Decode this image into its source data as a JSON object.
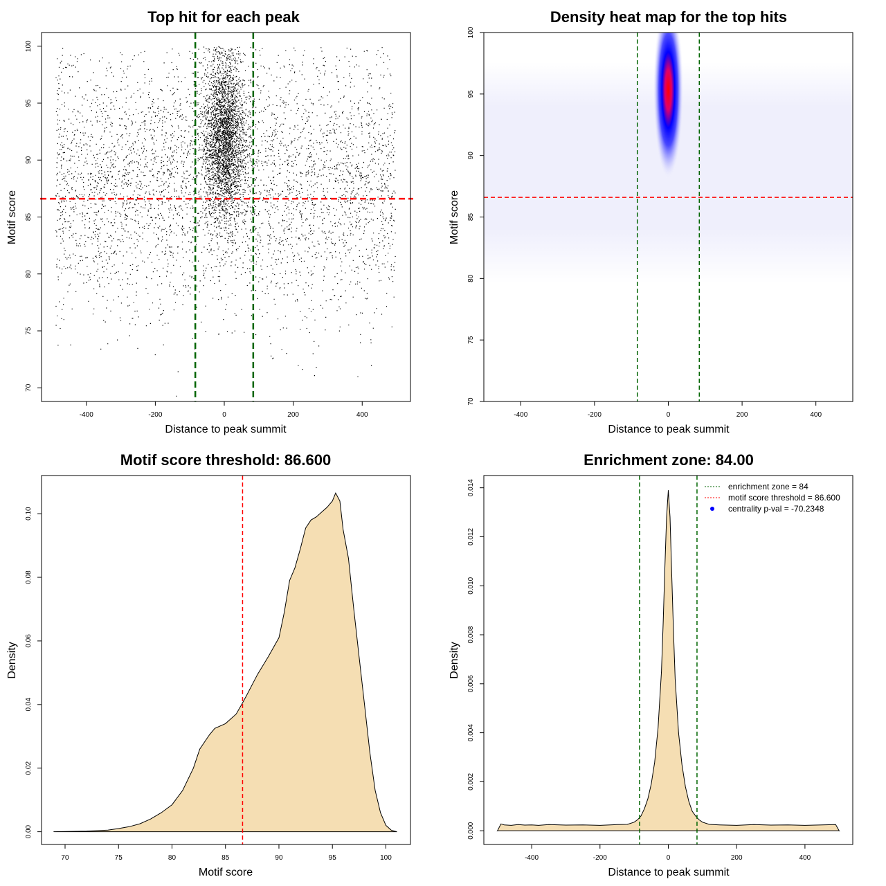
{
  "chart_data": [
    {
      "type": "scatter",
      "title": "Top hit for each peak",
      "xlabel": "Distance to peak summit",
      "ylabel": "Motif score",
      "xlim": [
        -530,
        540
      ],
      "ylim": [
        68.8,
        101.2
      ],
      "xticks": [
        -400,
        -200,
        0,
        200,
        400
      ],
      "yticks": [
        70,
        75,
        80,
        85,
        90,
        95,
        100
      ],
      "vlines": [
        -84,
        84
      ],
      "hline": 86.6,
      "point_distribution": {
        "background": {
          "x_range": [
            -490,
            495
          ],
          "y_center": 88,
          "y_spread": 5.5,
          "count": 9000
        },
        "central": {
          "x_center": 0,
          "x_spread": 30,
          "y_center": 92,
          "y_spread": 3.6,
          "count": 15000
        },
        "score_max": 100
      }
    },
    {
      "type": "heatmap",
      "title": "Density heat map for the top hits",
      "xlabel": "Distance to peak summit",
      "ylabel": "Motif score",
      "xlim": [
        -500,
        500
      ],
      "ylim": [
        70,
        100
      ],
      "xticks": [
        -400,
        -200,
        0,
        200,
        400
      ],
      "yticks": [
        70,
        75,
        80,
        85,
        90,
        95,
        100
      ],
      "vlines": [
        -84,
        84
      ],
      "hline": 86.6,
      "hotspot": {
        "x": 0,
        "y": 95
      },
      "colors": [
        "#ffffff",
        "#0000ff",
        "#ff0000"
      ]
    },
    {
      "type": "area",
      "title": "Motif score threshold: 86.600",
      "xlabel": "Motif score",
      "ylabel": "Density",
      "xlim": [
        67.8,
        102.3
      ],
      "ylim": [
        -0.004,
        0.112
      ],
      "xticks": [
        70,
        75,
        80,
        85,
        90,
        95,
        100
      ],
      "yticks": [
        0.0,
        0.02,
        0.04,
        0.06,
        0.08,
        0.1
      ],
      "ytick_labels": [
        "0.00",
        "0.02",
        "0.04",
        "0.06",
        "0.08",
        "0.10"
      ],
      "vline": 86.6,
      "x": [
        69,
        72,
        74,
        75,
        76,
        77,
        78,
        79,
        80,
        81,
        82,
        82.6,
        83,
        83.5,
        84,
        85,
        86,
        86.6,
        87,
        88,
        89,
        90,
        90.5,
        91,
        91.5,
        92,
        92.5,
        93,
        93.5,
        94,
        94.5,
        95,
        95.3,
        95.7,
        96,
        96.5,
        97,
        97.5,
        98,
        98.5,
        99,
        99.5,
        100,
        100.5,
        101
      ],
      "y": [
        0,
        0.0002,
        0.0005,
        0.001,
        0.0016,
        0.0025,
        0.004,
        0.006,
        0.0085,
        0.013,
        0.02,
        0.026,
        0.028,
        0.0305,
        0.0325,
        0.034,
        0.037,
        0.0405,
        0.043,
        0.0495,
        0.055,
        0.061,
        0.069,
        0.079,
        0.083,
        0.089,
        0.0955,
        0.098,
        0.099,
        0.1005,
        0.102,
        0.104,
        0.1065,
        0.104,
        0.095,
        0.086,
        0.07,
        0.055,
        0.04,
        0.025,
        0.013,
        0.006,
        0.002,
        0.0005,
        0
      ]
    },
    {
      "type": "area",
      "title": "Enrichment zone: 84.00",
      "xlabel": "Distance to peak summit",
      "ylabel": "Density",
      "xlim": [
        -540,
        540
      ],
      "ylim": [
        -0.00056,
        0.0145
      ],
      "xticks": [
        -400,
        -200,
        0,
        200,
        400
      ],
      "yticks": [
        0.0,
        0.002,
        0.004,
        0.006,
        0.008,
        0.01,
        0.012,
        0.014
      ],
      "ytick_labels": [
        "0.000",
        "0.002",
        "0.004",
        "0.006",
        "0.008",
        "0.010",
        "0.012",
        "0.014"
      ],
      "vlines": [
        -84,
        84
      ],
      "x": [
        -500,
        -490,
        -480,
        -460,
        -440,
        -420,
        -400,
        -380,
        -350,
        -300,
        -250,
        -200,
        -150,
        -120,
        -100,
        -90,
        -80,
        -70,
        -60,
        -50,
        -40,
        -30,
        -20,
        -15,
        -10,
        -5,
        0,
        5,
        10,
        15,
        20,
        30,
        40,
        50,
        60,
        70,
        80,
        90,
        100,
        120,
        150,
        200,
        250,
        300,
        350,
        400,
        450,
        490,
        500
      ],
      "y": [
        0,
        0.00028,
        0.00024,
        0.00022,
        0.00025,
        0.00023,
        0.00024,
        0.00022,
        0.00025,
        0.00023,
        0.00024,
        0.00022,
        0.00025,
        0.00026,
        0.00035,
        0.00045,
        0.0006,
        0.0009,
        0.0013,
        0.0019,
        0.0028,
        0.0042,
        0.0065,
        0.0085,
        0.0108,
        0.0128,
        0.0139,
        0.0128,
        0.0105,
        0.0082,
        0.0062,
        0.004,
        0.0027,
        0.0018,
        0.0012,
        0.0008,
        0.0006,
        0.00045,
        0.00035,
        0.00026,
        0.00024,
        0.00022,
        0.00025,
        0.00023,
        0.00024,
        0.00022,
        0.00024,
        0.00025,
        0
      ],
      "legend": [
        {
          "label": "enrichment zone = 84",
          "symbol": "dotted-line",
          "color": "#006400"
        },
        {
          "label": "motif score threshold = 86.600",
          "symbol": "dotted-line",
          "color": "#ff0000"
        },
        {
          "label": "centrality p-val = -70.2348",
          "symbol": "dot",
          "color": "#0000ff"
        }
      ]
    }
  ],
  "colors": {
    "density_fill": "#f5deb3",
    "threshold": "#ff0000",
    "zone": "#006400"
  }
}
